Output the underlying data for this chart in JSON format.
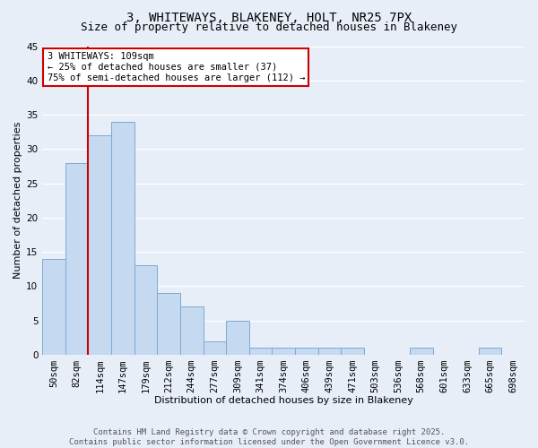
{
  "title1": "3, WHITEWAYS, BLAKENEY, HOLT, NR25 7PX",
  "title2": "Size of property relative to detached houses in Blakeney",
  "xlabel": "Distribution of detached houses by size in Blakeney",
  "ylabel": "Number of detached properties",
  "categories": [
    "50sqm",
    "82sqm",
    "114sqm",
    "147sqm",
    "179sqm",
    "212sqm",
    "244sqm",
    "277sqm",
    "309sqm",
    "341sqm",
    "374sqm",
    "406sqm",
    "439sqm",
    "471sqm",
    "503sqm",
    "536sqm",
    "568sqm",
    "601sqm",
    "633sqm",
    "665sqm",
    "698sqm"
  ],
  "values": [
    14,
    28,
    32,
    34,
    13,
    9,
    7,
    2,
    5,
    1,
    1,
    1,
    1,
    1,
    0,
    0,
    1,
    0,
    0,
    1,
    0
  ],
  "bar_color": "#c5d9f0",
  "bar_edge_color": "#7baad4",
  "red_line_index": 2,
  "annotation_text": "3 WHITEWAYS: 109sqm\n← 25% of detached houses are smaller (37)\n75% of semi-detached houses are larger (112) →",
  "annotation_box_facecolor": "#ffffff",
  "annotation_box_edgecolor": "#cc0000",
  "red_line_color": "#cc0000",
  "ylim": [
    0,
    45
  ],
  "yticks": [
    0,
    5,
    10,
    15,
    20,
    25,
    30,
    35,
    40,
    45
  ],
  "footer": "Contains HM Land Registry data © Crown copyright and database right 2025.\nContains public sector information licensed under the Open Government Licence v3.0.",
  "bg_color": "#e8eef8",
  "grid_color": "#ffffff",
  "title_fontsize": 10,
  "subtitle_fontsize": 9,
  "axis_label_fontsize": 8,
  "tick_fontsize": 7.5,
  "annotation_fontsize": 7.5,
  "footer_fontsize": 6.5
}
